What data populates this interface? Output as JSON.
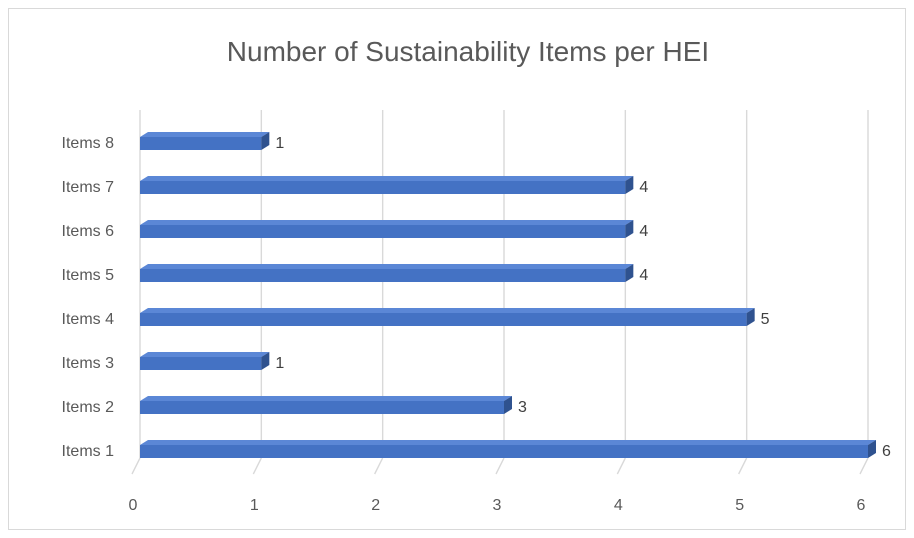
{
  "chart_data": {
    "type": "bar",
    "orientation": "horizontal",
    "title": "Number of Sustainability Items per HEI",
    "categories": [
      "Items 1",
      "Items 2",
      "Items 3",
      "Items 4",
      "Items 5",
      "Items 6",
      "Items 7",
      "Items 8"
    ],
    "values": [
      6,
      3,
      1,
      5,
      4,
      4,
      4,
      1
    ],
    "x_ticks": [
      "0",
      "1",
      "2",
      "3",
      "4",
      "5",
      "6"
    ],
    "xlim": [
      0,
      6
    ],
    "grid": true,
    "legend": "none",
    "data_labels": true,
    "bar_color": "#4472C4",
    "bar_side_color": "#2F528F",
    "bar_top_color": "#5B87D6"
  }
}
